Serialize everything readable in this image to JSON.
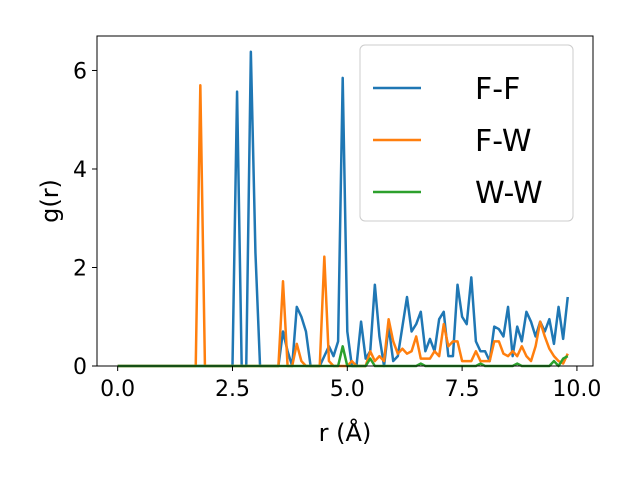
{
  "chart_data": {
    "type": "line",
    "xlabel": "r (Å)",
    "ylabel": "g(r)",
    "xlim": [
      -0.45,
      10.35
    ],
    "ylim": [
      0,
      6.7
    ],
    "xticks": [
      0.0,
      2.5,
      5.0,
      7.5,
      10.0
    ],
    "xtick_labels": [
      "0.0",
      "2.5",
      "5.0",
      "7.5",
      "10.0"
    ],
    "yticks": [
      0,
      2,
      4,
      6
    ],
    "ytick_labels": [
      "0",
      "2",
      "4",
      "6"
    ],
    "grid": false,
    "legend_position": "top-right",
    "series": [
      {
        "name": "F-F",
        "color": "#1f77b4",
        "points": [
          [
            0.0,
            0
          ],
          [
            2.5,
            0
          ],
          [
            2.6,
            5.57
          ],
          [
            2.7,
            0
          ],
          [
            2.8,
            0
          ],
          [
            2.9,
            6.38
          ],
          [
            3.0,
            2.3
          ],
          [
            3.1,
            0
          ],
          [
            3.5,
            0
          ],
          [
            3.6,
            0.7
          ],
          [
            3.7,
            0.3
          ],
          [
            3.8,
            0
          ],
          [
            3.9,
            1.2
          ],
          [
            4.0,
            1.0
          ],
          [
            4.1,
            0.7
          ],
          [
            4.2,
            0
          ],
          [
            4.3,
            0
          ],
          [
            4.4,
            0
          ],
          [
            4.5,
            0.2
          ],
          [
            4.6,
            0.4
          ],
          [
            4.7,
            0.2
          ],
          [
            4.8,
            0.5
          ],
          [
            4.9,
            5.85
          ],
          [
            5.0,
            0.7
          ],
          [
            5.1,
            0
          ],
          [
            5.2,
            0
          ],
          [
            5.3,
            0.9
          ],
          [
            5.4,
            0.15
          ],
          [
            5.5,
            0.3
          ],
          [
            5.6,
            1.65
          ],
          [
            5.7,
            0.6
          ],
          [
            5.8,
            0
          ],
          [
            5.9,
            0.8
          ],
          [
            6.0,
            0.1
          ],
          [
            6.1,
            0.2
          ],
          [
            6.2,
            0.8
          ],
          [
            6.3,
            1.4
          ],
          [
            6.4,
            0.7
          ],
          [
            6.5,
            0.85
          ],
          [
            6.6,
            1.1
          ],
          [
            6.7,
            0.3
          ],
          [
            6.8,
            0.55
          ],
          [
            6.9,
            0.3
          ],
          [
            7.0,
            0.95
          ],
          [
            7.1,
            1.1
          ],
          [
            7.2,
            0.2
          ],
          [
            7.3,
            0.2
          ],
          [
            7.4,
            1.65
          ],
          [
            7.5,
            1.0
          ],
          [
            7.6,
            0.85
          ],
          [
            7.7,
            1.8
          ],
          [
            7.8,
            0.5
          ],
          [
            7.9,
            0.3
          ],
          [
            8.0,
            0.3
          ],
          [
            8.1,
            0.1
          ],
          [
            8.2,
            0.8
          ],
          [
            8.3,
            0.75
          ],
          [
            8.4,
            0.6
          ],
          [
            8.5,
            1.2
          ],
          [
            8.6,
            0.2
          ],
          [
            8.7,
            0.8
          ],
          [
            8.8,
            0.5
          ],
          [
            8.9,
            1.1
          ],
          [
            9.0,
            0.9
          ],
          [
            9.1,
            0.6
          ],
          [
            9.2,
            0.9
          ],
          [
            9.3,
            0.7
          ],
          [
            9.4,
            0.95
          ],
          [
            9.5,
            0.45
          ],
          [
            9.6,
            1.2
          ],
          [
            9.7,
            0.55
          ],
          [
            9.8,
            1.4
          ]
        ]
      },
      {
        "name": "F-W",
        "color": "#ff7f0e",
        "points": [
          [
            0.0,
            0
          ],
          [
            1.7,
            0
          ],
          [
            1.8,
            5.7
          ],
          [
            1.9,
            0
          ],
          [
            3.5,
            0
          ],
          [
            3.6,
            1.72
          ],
          [
            3.7,
            0
          ],
          [
            3.8,
            0
          ],
          [
            3.9,
            0.45
          ],
          [
            4.0,
            0.1
          ],
          [
            4.1,
            0
          ],
          [
            4.4,
            0
          ],
          [
            4.5,
            2.22
          ],
          [
            4.6,
            0.1
          ],
          [
            4.7,
            0
          ],
          [
            5.0,
            0
          ],
          [
            5.1,
            0.1
          ],
          [
            5.2,
            0
          ],
          [
            5.4,
            0
          ],
          [
            5.5,
            0.3
          ],
          [
            5.6,
            0.1
          ],
          [
            5.7,
            0.2
          ],
          [
            5.8,
            0.1
          ],
          [
            5.9,
            0.95
          ],
          [
            6.0,
            0.5
          ],
          [
            6.1,
            0.25
          ],
          [
            6.2,
            0.35
          ],
          [
            6.3,
            0.25
          ],
          [
            6.4,
            0.3
          ],
          [
            6.5,
            0.6
          ],
          [
            6.6,
            0.15
          ],
          [
            6.7,
            0.15
          ],
          [
            6.8,
            0.15
          ],
          [
            6.9,
            0.3
          ],
          [
            7.0,
            0.2
          ],
          [
            7.1,
            0.85
          ],
          [
            7.2,
            0.4
          ],
          [
            7.3,
            0.5
          ],
          [
            7.4,
            0.5
          ],
          [
            7.5,
            0.1
          ],
          [
            7.6,
            0.1
          ],
          [
            7.7,
            0.1
          ],
          [
            7.8,
            0.3
          ],
          [
            7.9,
            0.1
          ],
          [
            8.0,
            0.1
          ],
          [
            8.1,
            0.1
          ],
          [
            8.2,
            0.5
          ],
          [
            8.3,
            0.5
          ],
          [
            8.4,
            0.25
          ],
          [
            8.5,
            0.2
          ],
          [
            8.6,
            0.3
          ],
          [
            8.7,
            0.2
          ],
          [
            8.8,
            0.4
          ],
          [
            8.9,
            0.2
          ],
          [
            9.0,
            0.1
          ],
          [
            9.1,
            0.4
          ],
          [
            9.2,
            0.9
          ],
          [
            9.3,
            0.6
          ],
          [
            9.4,
            0.35
          ],
          [
            9.5,
            0.2
          ],
          [
            9.6,
            0.1
          ],
          [
            9.7,
            0.05
          ],
          [
            9.8,
            0.25
          ]
        ]
      },
      {
        "name": "W-W",
        "color": "#2ca02c",
        "points": [
          [
            0.0,
            0
          ],
          [
            4.7,
            0
          ],
          [
            4.8,
            0
          ],
          [
            4.9,
            0.4
          ],
          [
            5.0,
            0
          ],
          [
            5.4,
            0
          ],
          [
            5.5,
            0.15
          ],
          [
            5.6,
            0
          ],
          [
            6.5,
            0
          ],
          [
            6.6,
            0.05
          ],
          [
            6.7,
            0
          ],
          [
            7.8,
            0
          ],
          [
            7.9,
            0.05
          ],
          [
            8.0,
            0
          ],
          [
            8.6,
            0
          ],
          [
            8.7,
            0.05
          ],
          [
            8.8,
            0
          ],
          [
            9.4,
            0
          ],
          [
            9.5,
            0.1
          ],
          [
            9.6,
            0
          ],
          [
            9.7,
            0.15
          ],
          [
            9.8,
            0.2
          ]
        ]
      }
    ]
  }
}
